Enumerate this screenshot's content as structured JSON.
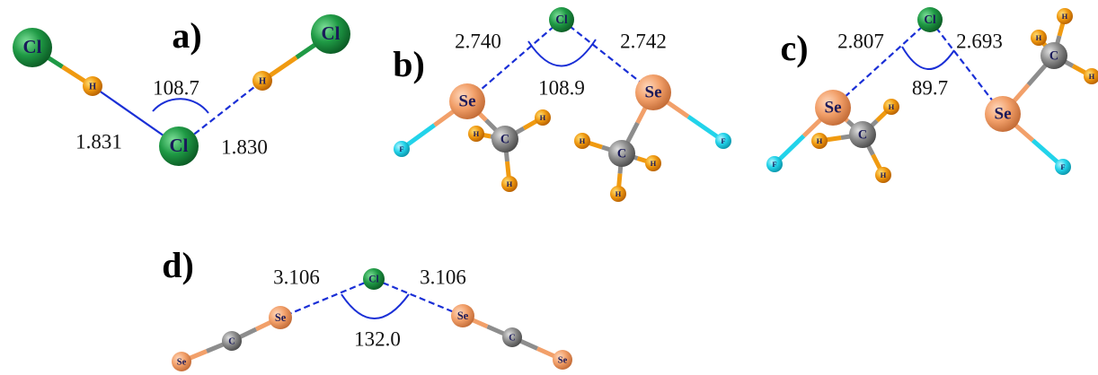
{
  "panels": [
    {
      "label": "a)",
      "atoms": [
        {
          "symbol": "Cl"
        },
        {
          "symbol": "H"
        },
        {
          "symbol": "Cl"
        },
        {
          "symbol": "H"
        },
        {
          "symbol": "Cl"
        }
      ],
      "distances": [
        "1.831",
        "1.830"
      ],
      "angle": "108.7"
    },
    {
      "label": "b)",
      "atoms": [
        {
          "symbol": "Cl"
        },
        {
          "symbol": "Se"
        },
        {
          "symbol": "Se"
        },
        {
          "symbol": "F"
        },
        {
          "symbol": "C"
        },
        {
          "symbol": "H"
        },
        {
          "symbol": "H"
        },
        {
          "symbol": "H"
        },
        {
          "symbol": "F"
        },
        {
          "symbol": "C"
        },
        {
          "symbol": "H"
        },
        {
          "symbol": "H"
        },
        {
          "symbol": "H"
        }
      ],
      "distances": [
        "2.740",
        "2.742"
      ],
      "angle": "108.9"
    },
    {
      "label": "c)",
      "atoms": [
        {
          "symbol": "Cl"
        },
        {
          "symbol": "Se"
        },
        {
          "symbol": "Se"
        },
        {
          "symbol": "F"
        },
        {
          "symbol": "C"
        },
        {
          "symbol": "H"
        },
        {
          "symbol": "H"
        },
        {
          "symbol": "H"
        },
        {
          "symbol": "F"
        },
        {
          "symbol": "C"
        },
        {
          "symbol": "H"
        },
        {
          "symbol": "H"
        },
        {
          "symbol": "H"
        }
      ],
      "distances": [
        "2.807",
        "2.693"
      ],
      "angle": "89.7"
    },
    {
      "label": "d)",
      "atoms": [
        {
          "symbol": "Cl"
        },
        {
          "symbol": "Se"
        },
        {
          "symbol": "C"
        },
        {
          "symbol": "Se"
        },
        {
          "symbol": "Se"
        },
        {
          "symbol": "C"
        },
        {
          "symbol": "Se"
        }
      ],
      "distances": [
        "3.106",
        "3.106"
      ],
      "angle": "132.0"
    }
  ]
}
